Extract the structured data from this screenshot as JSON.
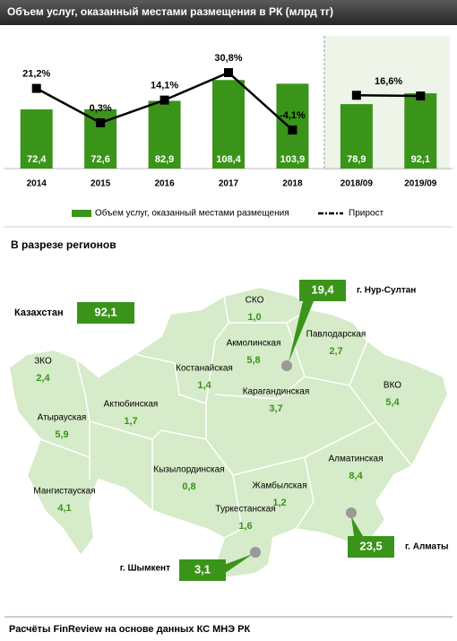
{
  "chart_data": {
    "type": "bar",
    "title": "Объем услуг, оказанный местами размещения в РК (млрд тг)",
    "categories": [
      "2014",
      "2015",
      "2016",
      "2017",
      "2018",
      "2018/09",
      "2019/09"
    ],
    "series": [
      {
        "name": "Объем услуг, оказанный местами размещения",
        "type": "bar",
        "color": "#3a9419",
        "values": [
          72.4,
          72.6,
          82.9,
          108.4,
          103.9,
          78.9,
          92.1
        ],
        "value_labels": [
          "72,4",
          "72,6",
          "82,9",
          "108,4",
          "103,9",
          "78,9",
          "92,1"
        ]
      },
      {
        "name": "Прирост",
        "type": "line",
        "axis": "y2",
        "color": "#000000",
        "values": [
          21.2,
          0.3,
          14.1,
          30.8,
          -4.1,
          17,
          16.6
        ],
        "value_labels": [
          "21,2%",
          "0,3%",
          "14,1%",
          "30,8%",
          "-4,1%",
          null,
          "16,6%"
        ]
      }
    ],
    "ylim": [
      0,
      135
    ],
    "y2lim": [
      -27.5,
      39.5
    ],
    "legend": "bottom"
  },
  "map": {
    "title": "В разрезе регионов",
    "total": {
      "name": "Казахстан",
      "value": "92,1"
    },
    "regions": [
      {
        "name": "СКО",
        "value": "1,0"
      },
      {
        "name": "Акмолинская",
        "value": "5,8"
      },
      {
        "name": "Павлодарская",
        "value": "2,7"
      },
      {
        "name": "ЗКО",
        "value": "2,4"
      },
      {
        "name": "Костанайская",
        "value": "1,4"
      },
      {
        "name": "ВКО",
        "value": "5,4"
      },
      {
        "name": "Атырауская",
        "value": "5,9"
      },
      {
        "name": "Актюбинская",
        "value": "1,7"
      },
      {
        "name": "Карагандинская",
        "value": "3,7"
      },
      {
        "name": "Кызылординская",
        "value": "0,8"
      },
      {
        "name": "Жамбылская",
        "value": "1,2"
      },
      {
        "name": "Алматинская",
        "value": "8,4"
      },
      {
        "name": "Мангистауская",
        "value": "4,1"
      },
      {
        "name": "Туркестанская",
        "value": "1,6"
      }
    ],
    "cities": [
      {
        "name": "г. Нур-Султан",
        "value": "19,4"
      },
      {
        "name": "г. Алматы",
        "value": "23,5"
      },
      {
        "name": "г. Шымкент",
        "value": "3,1"
      }
    ]
  },
  "footer": "Расчёты FinReview на основе данных КС МНЭ РК"
}
